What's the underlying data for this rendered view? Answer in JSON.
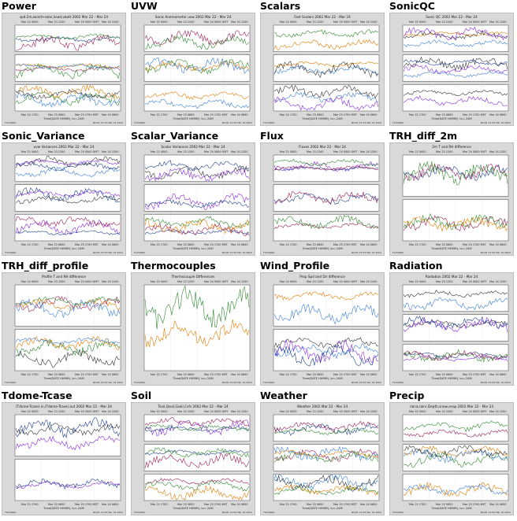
{
  "colors": {
    "page_background": "#ffffff",
    "figure_background": "#d9d9d9",
    "axes_background": "#ffffff",
    "series": [
      "#1f3f8f",
      "#9c1e55",
      "#2e8b2e",
      "#e07b00",
      "#3b7fd6",
      "#333333",
      "#8a2be2"
    ]
  },
  "thumbnails": [
    {
      "label": "Power",
      "subtitle": "spd.2m,iwind+solar,iload,vbatt 2002 Mar 22 - Mar 24",
      "panels": 3
    },
    {
      "label": "UVW",
      "subtitle": "Sonic Anemometer uvw 2002 Mar 22 - Mar 24",
      "panels": 3
    },
    {
      "label": "Scalars",
      "subtitle": "Fast Scalars 2002 Mar 22 - Mar 24",
      "panels": 3
    },
    {
      "label": "SonicQC",
      "subtitle": "Sonic QC 2002 Mar 22 - Mar 24",
      "panels": 3
    },
    {
      "label": "Sonic_Variance",
      "subtitle": "uvw Variances 2002 Mar 22 - Mar 24",
      "panels": 3
    },
    {
      "label": "Scalar_Variance",
      "subtitle": "Scalar Variances 2002 Mar 22 - Mar 24",
      "panels": 3
    },
    {
      "label": "Flux",
      "subtitle": "Fluxes 2002 Mar 22 - Mar 24",
      "panels": 3
    },
    {
      "label": "TRH_diff_2m",
      "subtitle": "2m T and RH difference",
      "panels": 2
    },
    {
      "label": "TRH_diff_profile",
      "subtitle": "Profile T and RH difference",
      "panels": 2
    },
    {
      "label": "Thermocouples",
      "subtitle": "Thermocouple Differences",
      "panels": 1
    },
    {
      "label": "Wind_Profile",
      "subtitle": "Prop Spd and Dir difference",
      "panels": 2
    },
    {
      "label": "Radiation",
      "subtitle": "Radiation 2002 Mar 22 - Mar 24",
      "panels": 3
    },
    {
      "label": "Tdome-Tcase",
      "subtitle": "(Tdome-Tcase).in,(Tdome-Tcase).out 2002 Mar 22 - Mar 24",
      "panels": 2
    },
    {
      "label": "Soil",
      "subtitle": "Tsoil,Qsoil,Gsoil,Cvfs 2002 Mar 22 - Mar 24",
      "panels": 3
    },
    {
      "label": "Weather",
      "subtitle": "Weather 2002 Mar 22 - Mar 24",
      "panels": 3
    },
    {
      "label": "Precip",
      "subtitle": "raina,rainr,Depth,snow,evap 2002 Mar 22 - Mar 24",
      "panels": 3
    }
  ],
  "axis_ticks_top": [
    "Mar 22 0000",
    "Mar 23 1200",
    "Mar 24 0000 GMT",
    "Mar 24 1200"
  ],
  "axis_ticks_bottom": [
    "Mar 22 1700",
    "Mar 23 0600",
    "Mar 23 1700 MST",
    "Mar 24 0600"
  ],
  "axis_xlabel": "Time(DATE HHMM), tz=-24M",
  "footer_left": "FLXQRRQ",
  "footer_right": "NCAR 13:59 Mar 24 2002"
}
